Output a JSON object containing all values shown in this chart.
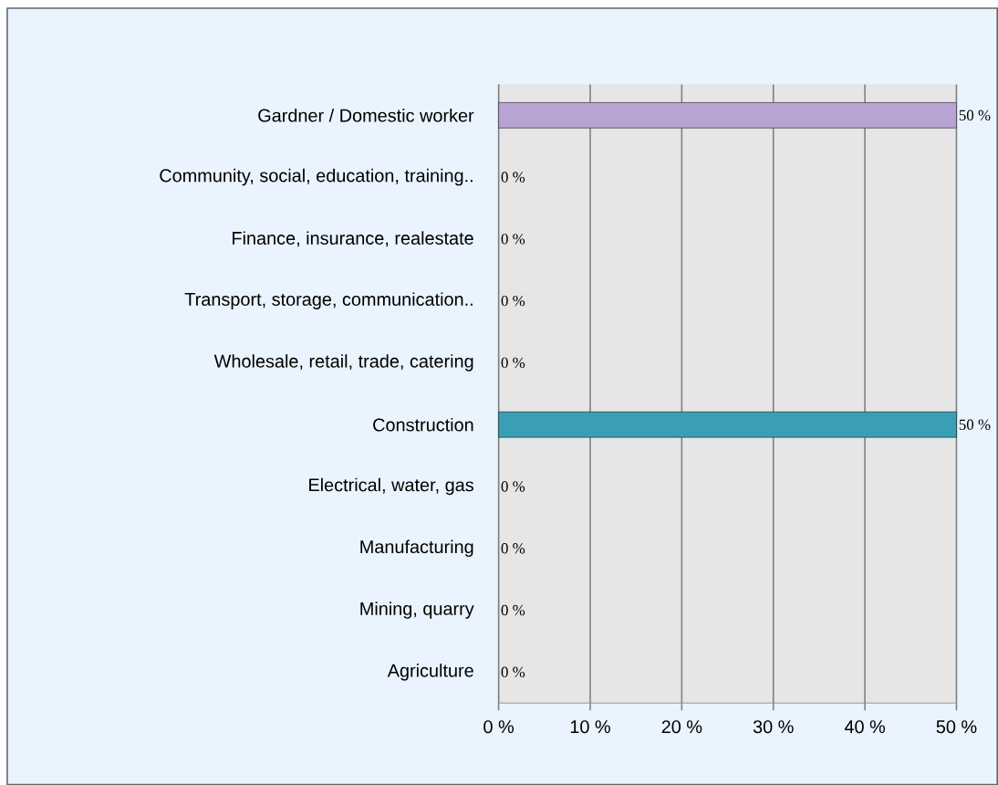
{
  "chart_data": {
    "type": "bar",
    "orientation": "horizontal",
    "categories": [
      "Gardner / Domestic worker",
      "Community, social, education, training..",
      "Finance, insurance, realestate",
      "Transport, storage, communication..",
      "Wholesale, retail, trade, catering",
      "Construction",
      "Electrical, water, gas",
      "Manufacturing",
      "Mining, quarry",
      "Agriculture"
    ],
    "values": [
      50,
      0,
      0,
      0,
      0,
      50,
      0,
      0,
      0,
      0
    ],
    "colors": [
      "#b9a3d3",
      null,
      null,
      null,
      null,
      "#3a9fb5",
      null,
      null,
      null,
      null
    ],
    "value_labels": [
      "50 %",
      "0 %",
      "0 %",
      "0 %",
      "0 %",
      "50 %",
      "0 %",
      "0 %",
      "0 %",
      "0 %"
    ],
    "xlim": [
      0,
      50
    ],
    "xticks": [
      {
        "value": 0,
        "label": "0 %"
      },
      {
        "value": 10,
        "label": "10 %"
      },
      {
        "value": 20,
        "label": "20 %"
      },
      {
        "value": 30,
        "label": "30 %"
      },
      {
        "value": 40,
        "label": "40 %"
      },
      {
        "value": 50,
        "label": "50 %"
      }
    ],
    "grid": "x"
  }
}
